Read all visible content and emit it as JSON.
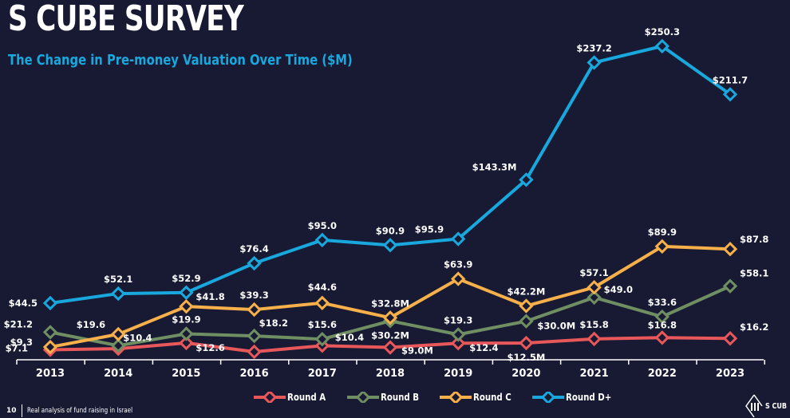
{
  "header": {
    "title": "S CUBE SURVEY",
    "subtitle": "The Change in Pre-money Valuation Over Time ($M)"
  },
  "footer": {
    "page_number": "10",
    "text": "Real analysis of fund raising in Israel",
    "logo_text": "S CUB"
  },
  "colors": {
    "background": "#181933",
    "round_a": "#e8585b",
    "round_b": "#6f8f63",
    "round_c": "#f7b04a",
    "round_d": "#19a8dd"
  },
  "chart_data": {
    "type": "line",
    "title": "The Change in Pre-money Valuation Over Time ($M)",
    "xlabel": "",
    "ylabel": "",
    "x": [
      "2013",
      "2014",
      "2015",
      "2016",
      "2017",
      "2018",
      "2019",
      "2020",
      "2021",
      "2022",
      "2023"
    ],
    "ylim": [
      0,
      260
    ],
    "grid": false,
    "legend_position": "bottom",
    "series": [
      {
        "name": "Round A",
        "color": "#e8585b",
        "values": [
          7.1,
          8.0,
          12.6,
          5.5,
          10.4,
          9.0,
          12.4,
          12.5,
          15.8,
          16.8,
          16.2
        ],
        "labels": [
          "$7.1",
          "",
          "$12.6",
          "",
          "",
          "$9.0M",
          "$12.4",
          "$12.5M",
          "$15.8",
          "$16.8",
          "$16.2"
        ]
      },
      {
        "name": "Round B",
        "color": "#6f8f63",
        "values": [
          21.2,
          10.4,
          19.9,
          18.2,
          15.6,
          30.2,
          19.3,
          30.0,
          49.0,
          33.6,
          58.1
        ],
        "labels": [
          "$21.2",
          "$10.4",
          "$19.9",
          "$18.2",
          "$15.6",
          "$30.2M",
          "$19.3",
          "$30.0M",
          "$49.0",
          "$33.6",
          "$58.1"
        ]
      },
      {
        "name": "Round C",
        "color": "#f7b04a",
        "values": [
          9.3,
          19.6,
          41.8,
          39.3,
          44.6,
          32.8,
          63.9,
          42.2,
          57.1,
          89.9,
          87.8
        ],
        "labels": [
          "$9.3",
          "$19.6",
          "$41.8",
          "$39.3",
          "$44.6",
          "$32.8M",
          "$63.9",
          "$42.2M",
          "$57.1",
          "$89.9",
          "$87.8"
        ]
      },
      {
        "name": "Round D+",
        "color": "#19a8dd",
        "values": [
          44.5,
          52.1,
          52.9,
          76.4,
          95.0,
          90.9,
          95.9,
          143.3,
          237.2,
          250.3,
          211.7
        ],
        "labels": [
          "$44.5",
          "$52.1",
          "$52.9",
          "$76.4",
          "$95.0",
          "$90.9",
          "$95.9",
          "$143.3M",
          "$237.2",
          "$250.3",
          "$211.7"
        ]
      }
    ],
    "extra_labels": [
      {
        "series": "Round B",
        "index": 4,
        "text": "$10.4"
      }
    ]
  }
}
